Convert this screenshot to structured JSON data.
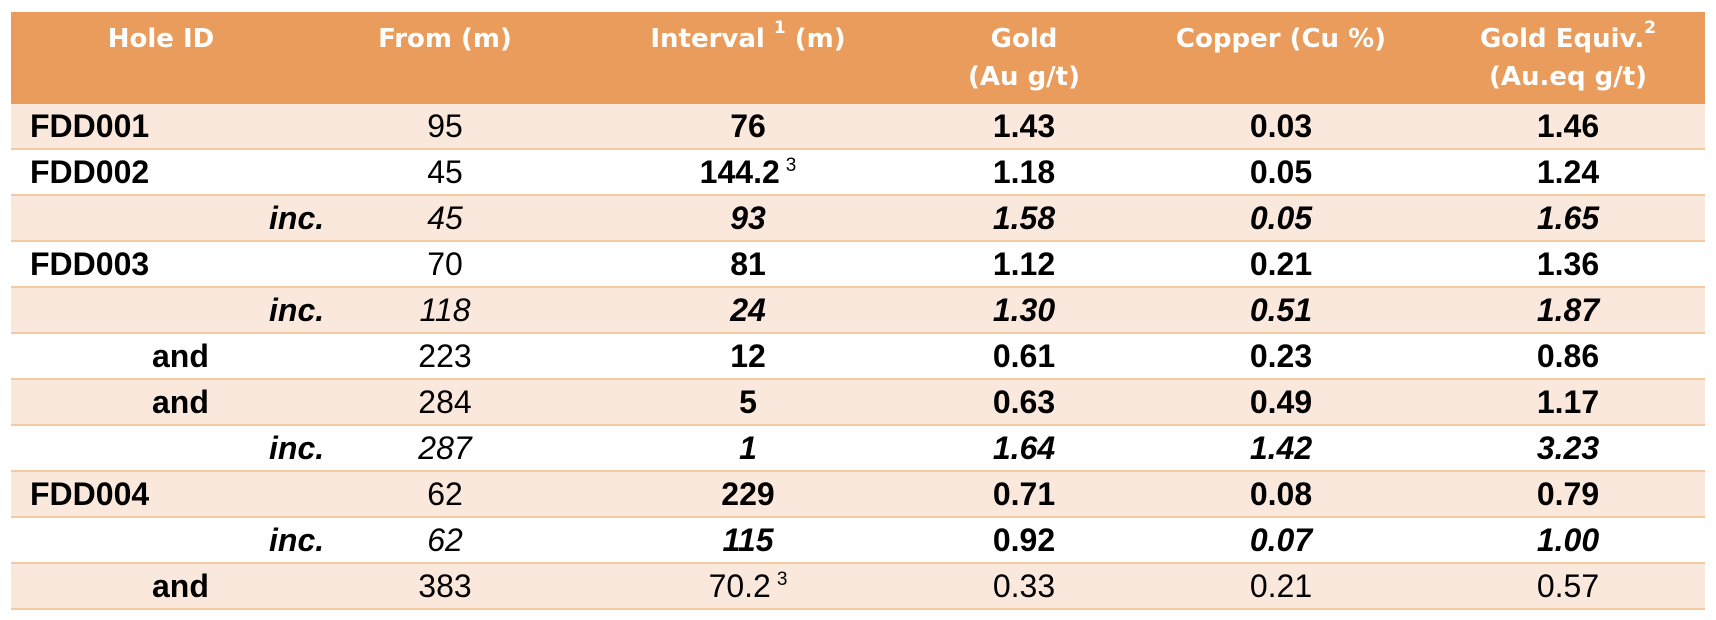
{
  "table": {
    "headers": [
      {
        "line1": "Hole ID",
        "line2": "",
        "sup": ""
      },
      {
        "line1": "From (m)",
        "line2": "",
        "sup": ""
      },
      {
        "line1": "Interval ",
        "line2": "",
        "sup": "1",
        "suffix": " (m)"
      },
      {
        "line1": "Gold",
        "line2": "(Au g/t)",
        "sup": ""
      },
      {
        "line1": "Copper (Cu %)",
        "line2": "",
        "sup": ""
      },
      {
        "line1": "Gold Equiv.",
        "line2": "(Au.eq g/t)",
        "sup": "2"
      }
    ],
    "rows": [
      {
        "hole": "FDD001",
        "level": "hole",
        "from": "95",
        "interval": "76",
        "interval_note": "",
        "gold": "1.43",
        "copper": "0.03",
        "au_eq": "1.46"
      },
      {
        "hole": "FDD002",
        "level": "hole",
        "from": "45",
        "interval": "144.2",
        "interval_note": "3",
        "gold": "1.18",
        "copper": "0.05",
        "au_eq": "1.24"
      },
      {
        "hole": "inc.",
        "level": "inc",
        "from": "45",
        "interval": "93",
        "interval_note": "",
        "gold": "1.58",
        "copper": "0.05",
        "au_eq": "1.65"
      },
      {
        "hole": "FDD003",
        "level": "hole",
        "from": "70",
        "interval": "81",
        "interval_note": "",
        "gold": "1.12",
        "copper": "0.21",
        "au_eq": "1.36"
      },
      {
        "hole": "inc.",
        "level": "inc",
        "from": "118",
        "interval": "24",
        "interval_note": "",
        "gold": "1.30",
        "copper": "0.51",
        "au_eq": "1.87"
      },
      {
        "hole": "and",
        "level": "and",
        "from": "223",
        "interval": "12",
        "interval_note": "",
        "gold": "0.61",
        "copper": "0.23",
        "au_eq": "0.86"
      },
      {
        "hole": "and",
        "level": "and",
        "from": "284",
        "interval": "5",
        "interval_note": "",
        "gold": "0.63",
        "copper": "0.49",
        "au_eq": "1.17"
      },
      {
        "hole": "inc.",
        "level": "inc",
        "from": "287",
        "interval": "1",
        "interval_note": "",
        "gold": "1.64",
        "copper": "1.42",
        "au_eq": "3.23"
      },
      {
        "hole": "FDD004",
        "level": "hole",
        "from": "62",
        "interval": "229",
        "interval_note": "",
        "gold": "0.71",
        "copper": "0.08",
        "au_eq": "0.79"
      },
      {
        "hole": "inc.",
        "level": "inc",
        "from": "62",
        "interval": "115",
        "interval_note": "",
        "gold": "0.92",
        "copper": "0.07",
        "au_eq": "1.00",
        "gold_upright": true
      },
      {
        "hole": "and",
        "level": "and-last",
        "from": "383",
        "interval": "70.2",
        "interval_note": "3",
        "gold": "0.33",
        "copper": "0.21",
        "au_eq": "0.57"
      }
    ]
  },
  "colors": {
    "header_bg": "#e99c5b",
    "row_shaded": "#fbe8dc",
    "row_border": "#f3c9a2",
    "header_text": "#ffffff"
  }
}
